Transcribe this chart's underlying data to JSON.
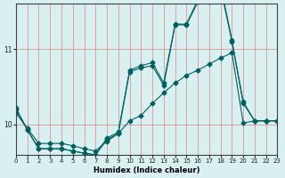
{
  "xlabel": "Humidex (Indice chaleur)",
  "ylabel": "",
  "bg_color": "#d9f0f0",
  "grid_color": "#f0a0a0",
  "line_color": "#006060",
  "xlim": [
    0,
    23
  ],
  "ylim": [
    9.6,
    11.6
  ],
  "yticks": [
    10,
    11
  ],
  "xticks": [
    0,
    1,
    2,
    3,
    4,
    5,
    6,
    7,
    8,
    9,
    10,
    11,
    12,
    13,
    14,
    15,
    16,
    17,
    18,
    19,
    20,
    21,
    22,
    23
  ],
  "series1_x": [
    0,
    1,
    2,
    3,
    4,
    5,
    6,
    7,
    8,
    9,
    10,
    11,
    12,
    13,
    14,
    15,
    16,
    17,
    18,
    19,
    20,
    21,
    22,
    23
  ],
  "series1_y": [
    10.15,
    9.95,
    9.75,
    9.75,
    9.75,
    9.72,
    9.68,
    9.65,
    9.78,
    9.88,
    10.05,
    10.12,
    10.28,
    10.42,
    10.55,
    10.65,
    10.72,
    10.8,
    10.88,
    10.95,
    10.02,
    10.05,
    10.05,
    10.05
  ],
  "series2_x": [
    0,
    1,
    2,
    3,
    4,
    5,
    6,
    7,
    8,
    9,
    10,
    11,
    12,
    13,
    14,
    15,
    16,
    17,
    18,
    19,
    20,
    21,
    22,
    23
  ],
  "series2_y": [
    10.2,
    9.93,
    9.68,
    9.68,
    9.68,
    9.65,
    9.62,
    9.6,
    9.8,
    9.88,
    10.7,
    10.75,
    10.78,
    10.52,
    11.32,
    11.32,
    11.62,
    11.62,
    11.82,
    11.1,
    10.3,
    10.05,
    10.05,
    10.05
  ],
  "series3_x": [
    0,
    1,
    2,
    3,
    4,
    5,
    6,
    7,
    8,
    9,
    10,
    11,
    12,
    13,
    14,
    15,
    16,
    17,
    18,
    19,
    20,
    21,
    22,
    23
  ],
  "series3_y": [
    10.22,
    9.93,
    9.68,
    9.68,
    9.68,
    9.65,
    9.62,
    9.6,
    9.82,
    9.9,
    10.72,
    10.78,
    10.82,
    10.55,
    11.33,
    11.33,
    11.65,
    11.65,
    11.85,
    11.12,
    10.28,
    10.05,
    10.05,
    10.05
  ]
}
